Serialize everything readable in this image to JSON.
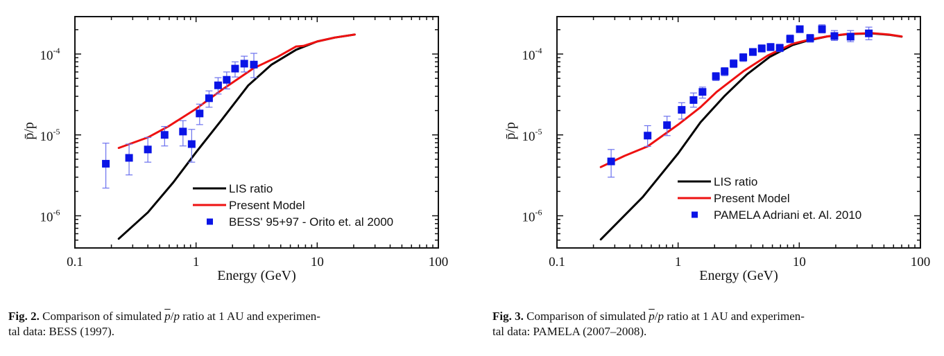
{
  "chart_data": [
    {
      "type": "line",
      "id": "fig2",
      "title": "",
      "xlabel": "Energy (GeV)",
      "ylabel": "p̄/p",
      "xscale": "log",
      "yscale": "log",
      "xlim": [
        0.1,
        100
      ],
      "ylim": [
        4e-07,
        0.00029
      ],
      "x_ticks": [
        {
          "value": 0.1,
          "label": "0.1"
        },
        {
          "value": 1,
          "label": "1"
        },
        {
          "value": 10,
          "label": "10"
        },
        {
          "value": 100,
          "label": "100"
        }
      ],
      "y_ticks": [
        {
          "value": 1e-06,
          "base": "10",
          "exp": "-6"
        },
        {
          "value": 1e-05,
          "base": "10",
          "exp": "-5"
        },
        {
          "value": 0.0001,
          "base": "10",
          "exp": "-4"
        }
      ],
      "grid": false,
      "legend_position": "bottom-right",
      "series": [
        {
          "name": "LIS ratio",
          "kind": "line",
          "color": "#000000",
          "x": [
            0.23,
            0.4,
            0.65,
            1.0,
            1.63,
            2.7,
            4.2,
            6.7,
            10,
            14,
            20.4
          ],
          "y": [
            5.2e-07,
            1.1e-06,
            2.6e-06,
            6.1e-06,
            1.54e-05,
            4.1e-05,
            7.4e-05,
            0.000113,
            0.000143,
            0.00016,
            0.000174
          ]
        },
        {
          "name": "Present Model",
          "kind": "line",
          "color": "#ee1111",
          "x": [
            0.23,
            0.4,
            0.59,
            1.0,
            1.63,
            3.0,
            4.7,
            6.7,
            7.7,
            10,
            14,
            20.4
          ],
          "y": [
            6.9e-06,
            9.3e-06,
            1.27e-05,
            2.1e-05,
            3.6e-05,
            6.7e-05,
            9.2e-05,
            0.000124,
            0.000126,
            0.000143,
            0.00016,
            0.000174
          ]
        },
        {
          "name": "BESS' 95+97 - Orito et. al 2000",
          "kind": "scatter",
          "color": "#0a14e6",
          "x": [
            0.18,
            0.28,
            0.4,
            0.55,
            0.78,
            0.92,
            1.07,
            1.28,
            1.52,
            1.79,
            2.1,
            2.5,
            3.0
          ],
          "y": [
            4.4e-06,
            5.2e-06,
            6.6e-06,
            1e-05,
            1.1e-05,
            7.7e-06,
            1.84e-05,
            2.84e-05,
            4.1e-05,
            4.8e-05,
            6.6e-05,
            7.6e-05,
            7.4e-05
          ],
          "y_err_high": [
            7.9e-06,
            7.7e-06,
            9.3e-06,
            1.27e-05,
            1.5e-05,
            1.17e-05,
            2.4e-05,
            3.5e-05,
            5.1e-05,
            6e-05,
            8e-05,
            9.4e-05,
            0.000102
          ],
          "y_err_low": [
            2.2e-06,
            3.2e-06,
            4.6e-06,
            7.3e-06,
            7.3e-06,
            4.6e-06,
            1.34e-05,
            2.2e-05,
            3.2e-05,
            3.7e-05,
            5.2e-05,
            6e-05,
            5.1e-05
          ]
        }
      ]
    },
    {
      "type": "line",
      "id": "fig3",
      "title": "",
      "xlabel": "Energy (GeV)",
      "ylabel": "p̄/p",
      "xscale": "log",
      "yscale": "log",
      "xlim": [
        0.1,
        100
      ],
      "ylim": [
        4e-07,
        0.00029
      ],
      "x_ticks": [
        {
          "value": 0.1,
          "label": "0.1"
        },
        {
          "value": 1,
          "label": "1"
        },
        {
          "value": 10,
          "label": "10"
        },
        {
          "value": 100,
          "label": "100"
        }
      ],
      "y_ticks": [
        {
          "value": 1e-06,
          "base": "10",
          "exp": "-6"
        },
        {
          "value": 1e-05,
          "base": "10",
          "exp": "-5"
        },
        {
          "value": 0.0001,
          "base": "10",
          "exp": "-4"
        }
      ],
      "grid": false,
      "legend_position": "bottom-right",
      "series": [
        {
          "name": "LIS ratio",
          "kind": "line",
          "color": "#000000",
          "x": [
            0.23,
            0.51,
            1.0,
            1.53,
            2.4,
            3.7,
            5.7,
            8.8,
            12,
            17,
            25,
            40,
            55,
            70
          ],
          "y": [
            5.1e-07,
            1.7e-06,
            5.9e-06,
            1.43e-05,
            3e-05,
            5.6e-05,
            9.2e-05,
            0.000129,
            0.000148,
            0.000165,
            0.000176,
            0.00018,
            0.000173,
            0.000164
          ]
        },
        {
          "name": "Present Model",
          "kind": "line",
          "color": "#ee1111",
          "x": [
            0.23,
            0.36,
            0.56,
            1.0,
            1.53,
            2.08,
            3.5,
            5.5,
            8.8,
            12,
            17,
            25,
            40,
            55,
            70
          ],
          "y": [
            4e-06,
            5.5e-06,
            7.2e-06,
            1.34e-05,
            2.2e-05,
            3.4e-05,
            6.2e-05,
            9.6e-05,
            0.000134,
            0.00015,
            0.000165,
            0.000177,
            0.000181,
            0.000174,
            0.000165
          ]
        },
        {
          "name": "PAMELA Adriani et. Al. 2010",
          "kind": "scatter",
          "color": "#0a14e6",
          "x": [
            0.28,
            0.56,
            0.81,
            1.07,
            1.34,
            1.59,
            2.05,
            2.42,
            2.87,
            3.45,
            4.14,
            4.9,
            5.8,
            6.9,
            8.4,
            10.1,
            12.3,
            15.4,
            19.5,
            26.5,
            37.5
          ],
          "y": [
            4.7e-06,
            9.8e-06,
            1.32e-05,
            2.04e-05,
            2.7e-05,
            3.4e-05,
            5.3e-05,
            6.1e-05,
            7.6e-05,
            9.1e-05,
            0.000106,
            0.000117,
            0.000122,
            0.000119,
            0.000154,
            0.000203,
            0.000157,
            0.000203,
            0.000167,
            0.000164,
            0.00018
          ],
          "y_err_high": [
            6.6e-06,
            1.3e-05,
            1.7e-05,
            2.5e-05,
            3.3e-05,
            3.9e-05,
            5.9e-05,
            6.8e-05,
            8.5e-05,
            0.000101,
            0.000117,
            0.00013,
            0.000135,
            0.000132,
            0.000172,
            0.00022,
            0.000175,
            0.00023,
            0.000195,
            0.000195,
            0.000215
          ],
          "y_err_low": [
            3e-06,
            7.2e-06,
            9.8e-06,
            1.57e-05,
            2.2e-05,
            2.85e-05,
            4.7e-05,
            5.4e-05,
            6.8e-05,
            8.1e-05,
            9.6e-05,
            0.000106,
            0.00011,
            0.000107,
            0.000138,
            0.000186,
            0.00014,
            0.000182,
            0.000147,
            0.000142,
            0.00015
          ]
        }
      ]
    }
  ],
  "captions": [
    {
      "label": "Fig. 2.",
      "text_before": "Comparison of simulated",
      "symbol_num": "p",
      "symbol_sep": "/",
      "symbol_den": "p",
      "text_after": "ratio at 1 AU and experimen-",
      "line2": "tal data: BESS (1997)."
    },
    {
      "label": "Fig. 3.",
      "text_before": "Comparison of simulated",
      "symbol_num": "p",
      "symbol_sep": "/",
      "symbol_den": "p",
      "text_after": "ratio at 1 AU and experimen-",
      "line2": "tal data: PAMELA (2007–2008)."
    }
  ]
}
